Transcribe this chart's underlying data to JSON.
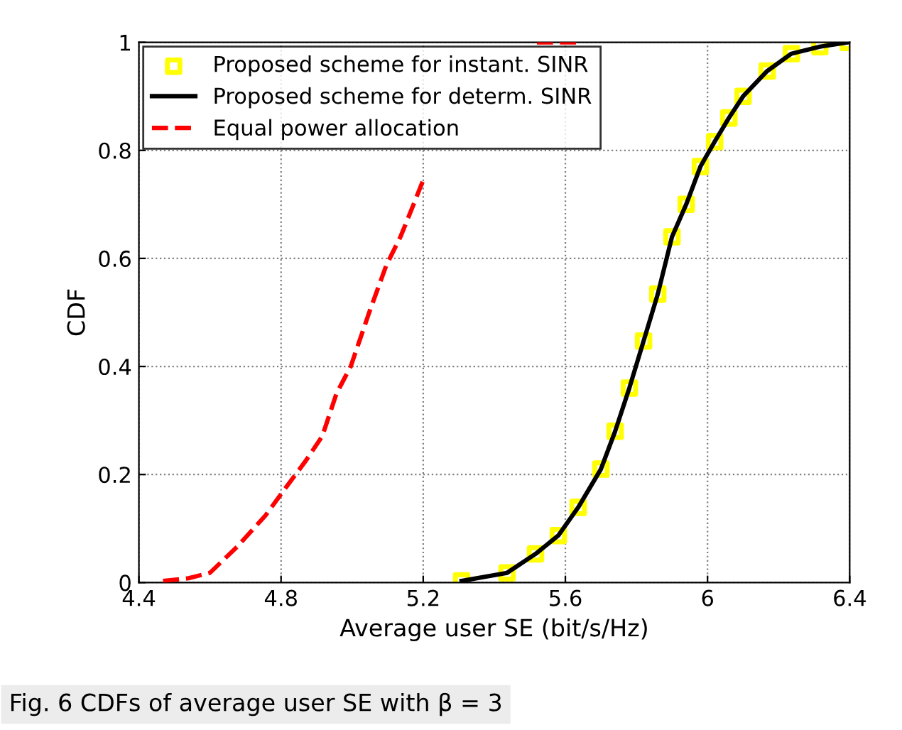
{
  "chart_data": {
    "type": "line",
    "xlabel": "Average user SE (bit/s/Hz)",
    "ylabel": "CDF",
    "xlim": [
      4.4,
      6.4
    ],
    "xticks": [
      4.4,
      4.8,
      5.2,
      5.6,
      6,
      6.4
    ],
    "ylim": [
      0,
      1
    ],
    "yticks": [
      0,
      0.2,
      0.4,
      0.6,
      0.8,
      1
    ],
    "grid": true,
    "legend": "top left",
    "series": [
      {
        "name": "Proposed scheme for instant. SINR",
        "type": "scatter",
        "marker": "square",
        "color": "#ffff00",
        "x": [
          5.308,
          5.436,
          5.516,
          5.58,
          5.636,
          5.7,
          5.74,
          5.78,
          5.82,
          5.86,
          5.9,
          5.94,
          5.98,
          6.02,
          6.06,
          6.1,
          6.168,
          6.236,
          6.316,
          6.396
        ],
        "values": [
          0.003,
          0.018,
          0.053,
          0.087,
          0.139,
          0.21,
          0.28,
          0.36,
          0.447,
          0.534,
          0.64,
          0.7,
          0.77,
          0.816,
          0.86,
          0.9,
          0.947,
          0.979,
          0.992,
          1.0
        ]
      },
      {
        "name": "Proposed scheme for determ. SINR",
        "line_style": "solid",
        "color": "#000000",
        "x": [
          5.308,
          5.436,
          5.516,
          5.58,
          5.636,
          5.7,
          5.74,
          5.78,
          5.82,
          5.86,
          5.9,
          5.94,
          5.98,
          6.02,
          6.06,
          6.1,
          6.168,
          6.236,
          6.316,
          6.396
        ],
        "values": [
          0.003,
          0.018,
          0.053,
          0.087,
          0.139,
          0.21,
          0.28,
          0.36,
          0.447,
          0.534,
          0.64,
          0.7,
          0.77,
          0.816,
          0.86,
          0.9,
          0.947,
          0.979,
          0.992,
          1.0
        ]
      },
      {
        "name": "Equal power allocation",
        "line_style": "dashed",
        "color": "#ff0000",
        "x": [
          4.468,
          4.54,
          4.6,
          4.676,
          4.756,
          4.808,
          4.868,
          4.916,
          4.956,
          4.996,
          5.048,
          5.096,
          5.136,
          5.168,
          5.2,
          5.36,
          5.52,
          5.64
        ],
        "values": [
          0.003,
          0.008,
          0.018,
          0.066,
          0.124,
          0.171,
          0.224,
          0.271,
          0.35,
          0.4,
          0.5,
          0.587,
          0.64,
          0.692,
          0.745,
          null,
          1.0,
          1.0
        ]
      }
    ],
    "annotations": [
      "Fig. 6 CDFs of average user SE with β = 3"
    ]
  }
}
